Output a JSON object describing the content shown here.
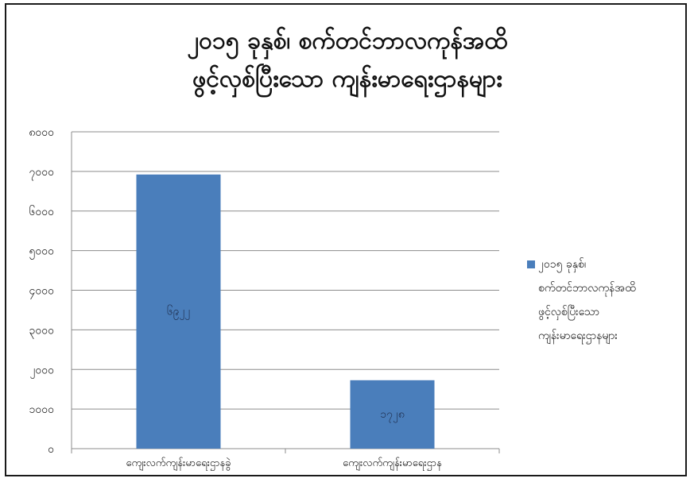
{
  "chart_data": {
    "type": "bar",
    "title": [
      "၂၀၁၅ ခုနှစ်၊ စက်တင်ဘာလကုန်အထိ",
      "ဖွင့်လှစ်ပြီးသော ကျန်းမာရေးဌာနများ"
    ],
    "categories": [
      "ကျေးလက်ကျန်းမာရေးဌာနခွဲ",
      "ကျေးလက်ကျန်းမာရေးဌာန"
    ],
    "series": [
      {
        "name": "၂၀၁၅ ခုနှစ်၊ စက်တင်ဘာလကုန်အထိ ဖွင့်လှစ်ပြီးသော ကျန်းမာရေးဌာနများ",
        "values": [
          6922,
          1728
        ],
        "data_labels": [
          "၆၉၂၂",
          "၁၇၂၈"
        ],
        "color": "#4a7ebb"
      }
    ],
    "ylim": [
      0,
      8000
    ],
    "yticks": [
      0,
      1000,
      2000,
      3000,
      4000,
      5000,
      6000,
      7000,
      8000
    ],
    "ytick_labels": [
      "၀",
      "၁၀၀၀",
      "၂၀၀၀",
      "၃၀၀၀",
      "၄၀၀၀",
      "၅၀၀၀",
      "၆၀၀၀",
      "၇၀၀၀",
      "၈၀၀၀"
    ],
    "grid": true,
    "legend_position": "right"
  },
  "legend": {
    "lines": [
      "၂၀၁၅ ခုနှစ်၊",
      "စက်တင်ဘာလကုန်အထိ",
      "ဖွင့်လှစ်ပြီးသော",
      "ကျန်းမာရေးဌာနများ"
    ]
  }
}
